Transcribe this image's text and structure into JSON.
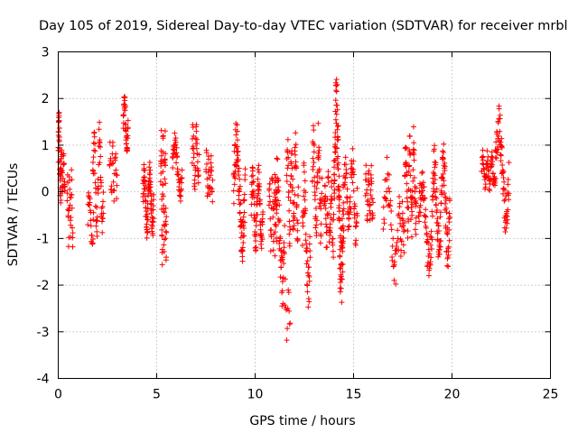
{
  "chart_data": {
    "type": "scatter",
    "title": "Day 105 of 2019, Sidereal Day-to-day VTEC variation (SDTVAR) for receiver mrbl",
    "xlabel": "GPS time / hours",
    "ylabel": "SDTVAR / TECUs",
    "xlim": [
      0,
      25
    ],
    "ylim": [
      -4,
      3
    ],
    "xticks": [
      "0",
      "5",
      "10",
      "15",
      "20",
      "25"
    ],
    "yticks": [
      "3",
      "2",
      "1",
      "0",
      "-1",
      "-2",
      "-3",
      "-4"
    ],
    "grid": true,
    "marker": "+",
    "color": "#ff0000",
    "segments": [
      {
        "t0": 0.0,
        "t1": 0.15,
        "lo": -0.4,
        "hi": 1.8,
        "n": 45
      },
      {
        "t0": 0.15,
        "t1": 0.35,
        "lo": -0.2,
        "hi": 1.0,
        "n": 25
      },
      {
        "t0": 0.45,
        "t1": 0.75,
        "lo": -1.3,
        "hi": 0.6,
        "n": 30
      },
      {
        "t0": 1.5,
        "t1": 1.8,
        "lo": -1.3,
        "hi": 0.2,
        "n": 22
      },
      {
        "t0": 1.75,
        "t1": 2.3,
        "lo": -1.1,
        "hi": 1.5,
        "n": 55
      },
      {
        "t0": 2.6,
        "t1": 3.0,
        "lo": -0.2,
        "hi": 1.1,
        "n": 28
      },
      {
        "t0": 3.3,
        "t1": 3.55,
        "lo": 0.8,
        "hi": 2.15,
        "n": 40
      },
      {
        "t0": 4.3,
        "t1": 4.85,
        "lo": -1.05,
        "hi": 0.65,
        "n": 90
      },
      {
        "t0": 5.2,
        "t1": 5.5,
        "lo": -1.75,
        "hi": 1.6,
        "n": 55
      },
      {
        "t0": 5.8,
        "t1": 6.3,
        "lo": -0.3,
        "hi": 1.3,
        "n": 45
      },
      {
        "t0": 6.8,
        "t1": 7.15,
        "lo": 0.0,
        "hi": 1.5,
        "n": 35
      },
      {
        "t0": 7.5,
        "t1": 7.85,
        "lo": -0.3,
        "hi": 0.95,
        "n": 32
      },
      {
        "t0": 8.9,
        "t1": 9.5,
        "lo": -1.5,
        "hi": 1.6,
        "n": 80
      },
      {
        "t0": 9.8,
        "t1": 10.4,
        "lo": -1.3,
        "hi": 0.6,
        "n": 75
      },
      {
        "t0": 10.7,
        "t1": 11.1,
        "lo": -1.3,
        "hi": 0.5,
        "n": 40
      },
      {
        "t0": 11.0,
        "t1": 11.5,
        "lo": -2.6,
        "hi": 0.8,
        "n": 55
      },
      {
        "t0": 11.5,
        "t1": 11.8,
        "lo": -3.2,
        "hi": -1.8,
        "n": 12
      },
      {
        "t0": 11.6,
        "t1": 12.2,
        "lo": -1.2,
        "hi": 1.3,
        "n": 65
      },
      {
        "t0": 12.4,
        "t1": 12.8,
        "lo": -2.6,
        "hi": 0.7,
        "n": 45
      },
      {
        "t0": 12.9,
        "t1": 13.4,
        "lo": -1.3,
        "hi": 1.5,
        "n": 55
      },
      {
        "t0": 13.5,
        "t1": 14.0,
        "lo": -1.6,
        "hi": 0.5,
        "n": 50
      },
      {
        "t0": 14.0,
        "t1": 14.5,
        "lo": -2.5,
        "hi": 2.5,
        "n": 110
      },
      {
        "t0": 14.5,
        "t1": 15.2,
        "lo": -1.2,
        "hi": 1.0,
        "n": 60
      },
      {
        "t0": 15.6,
        "t1": 16.0,
        "lo": -0.7,
        "hi": 0.6,
        "n": 40
      },
      {
        "t0": 16.5,
        "t1": 17.3,
        "lo": -2.1,
        "hi": 0.8,
        "n": 45
      },
      {
        "t0": 17.3,
        "t1": 17.6,
        "lo": -1.5,
        "hi": 0.1,
        "n": 22
      },
      {
        "t0": 17.6,
        "t1": 18.2,
        "lo": -1.1,
        "hi": 1.45,
        "n": 70
      },
      {
        "t0": 18.3,
        "t1": 19.0,
        "lo": -1.8,
        "hi": 0.5,
        "n": 60
      },
      {
        "t0": 19.0,
        "t1": 19.9,
        "lo": -1.7,
        "hi": 1.05,
        "n": 110
      },
      {
        "t0": 21.5,
        "t1": 22.2,
        "lo": 0.0,
        "hi": 0.9,
        "n": 60
      },
      {
        "t0": 22.2,
        "t1": 22.9,
        "lo": -0.9,
        "hi": 1.9,
        "n": 70
      }
    ]
  }
}
